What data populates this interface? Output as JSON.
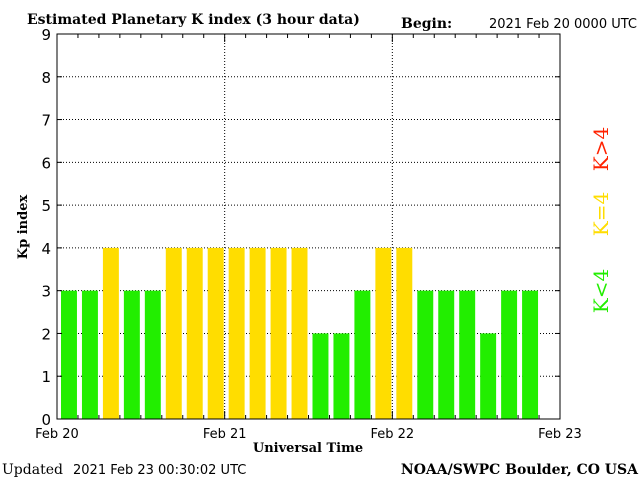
{
  "header": {
    "title": "Estimated Planetary K index (3 hour data)",
    "begin_label": "Begin:",
    "begin_value": "2021 Feb 20 0000 UTC"
  },
  "footer": {
    "updated_label": "Updated",
    "updated_value": "2021 Feb 23 00:30:02 UTC",
    "source": "NOAA/SWPC Boulder, CO USA"
  },
  "legend": {
    "high": "K>4",
    "mid": "K=4",
    "low": "K<4"
  },
  "colors": {
    "low": "#22ee00",
    "mid": "#ffdd00",
    "high": "#ff2200",
    "axis": "#000000",
    "grid": "#000000"
  },
  "chart_data": {
    "type": "bar",
    "title": "Estimated Planetary K index (3 hour data)",
    "xlabel": "Universal Time",
    "ylabel": "Kp index",
    "ylim": [
      0,
      9
    ],
    "y_ticks": [
      "0",
      "1",
      "2",
      "3",
      "4",
      "5",
      "6",
      "7",
      "8",
      "9"
    ],
    "x_ticks": [
      "Feb 20",
      "Feb 21",
      "Feb 22",
      "Feb 23"
    ],
    "grid": true,
    "interval_hours": 3,
    "values": [
      3,
      3,
      4,
      3,
      3,
      4,
      4,
      4,
      4,
      4,
      4,
      4,
      2,
      2,
      3,
      4,
      4,
      3,
      3,
      3,
      2,
      3,
      3
    ]
  }
}
